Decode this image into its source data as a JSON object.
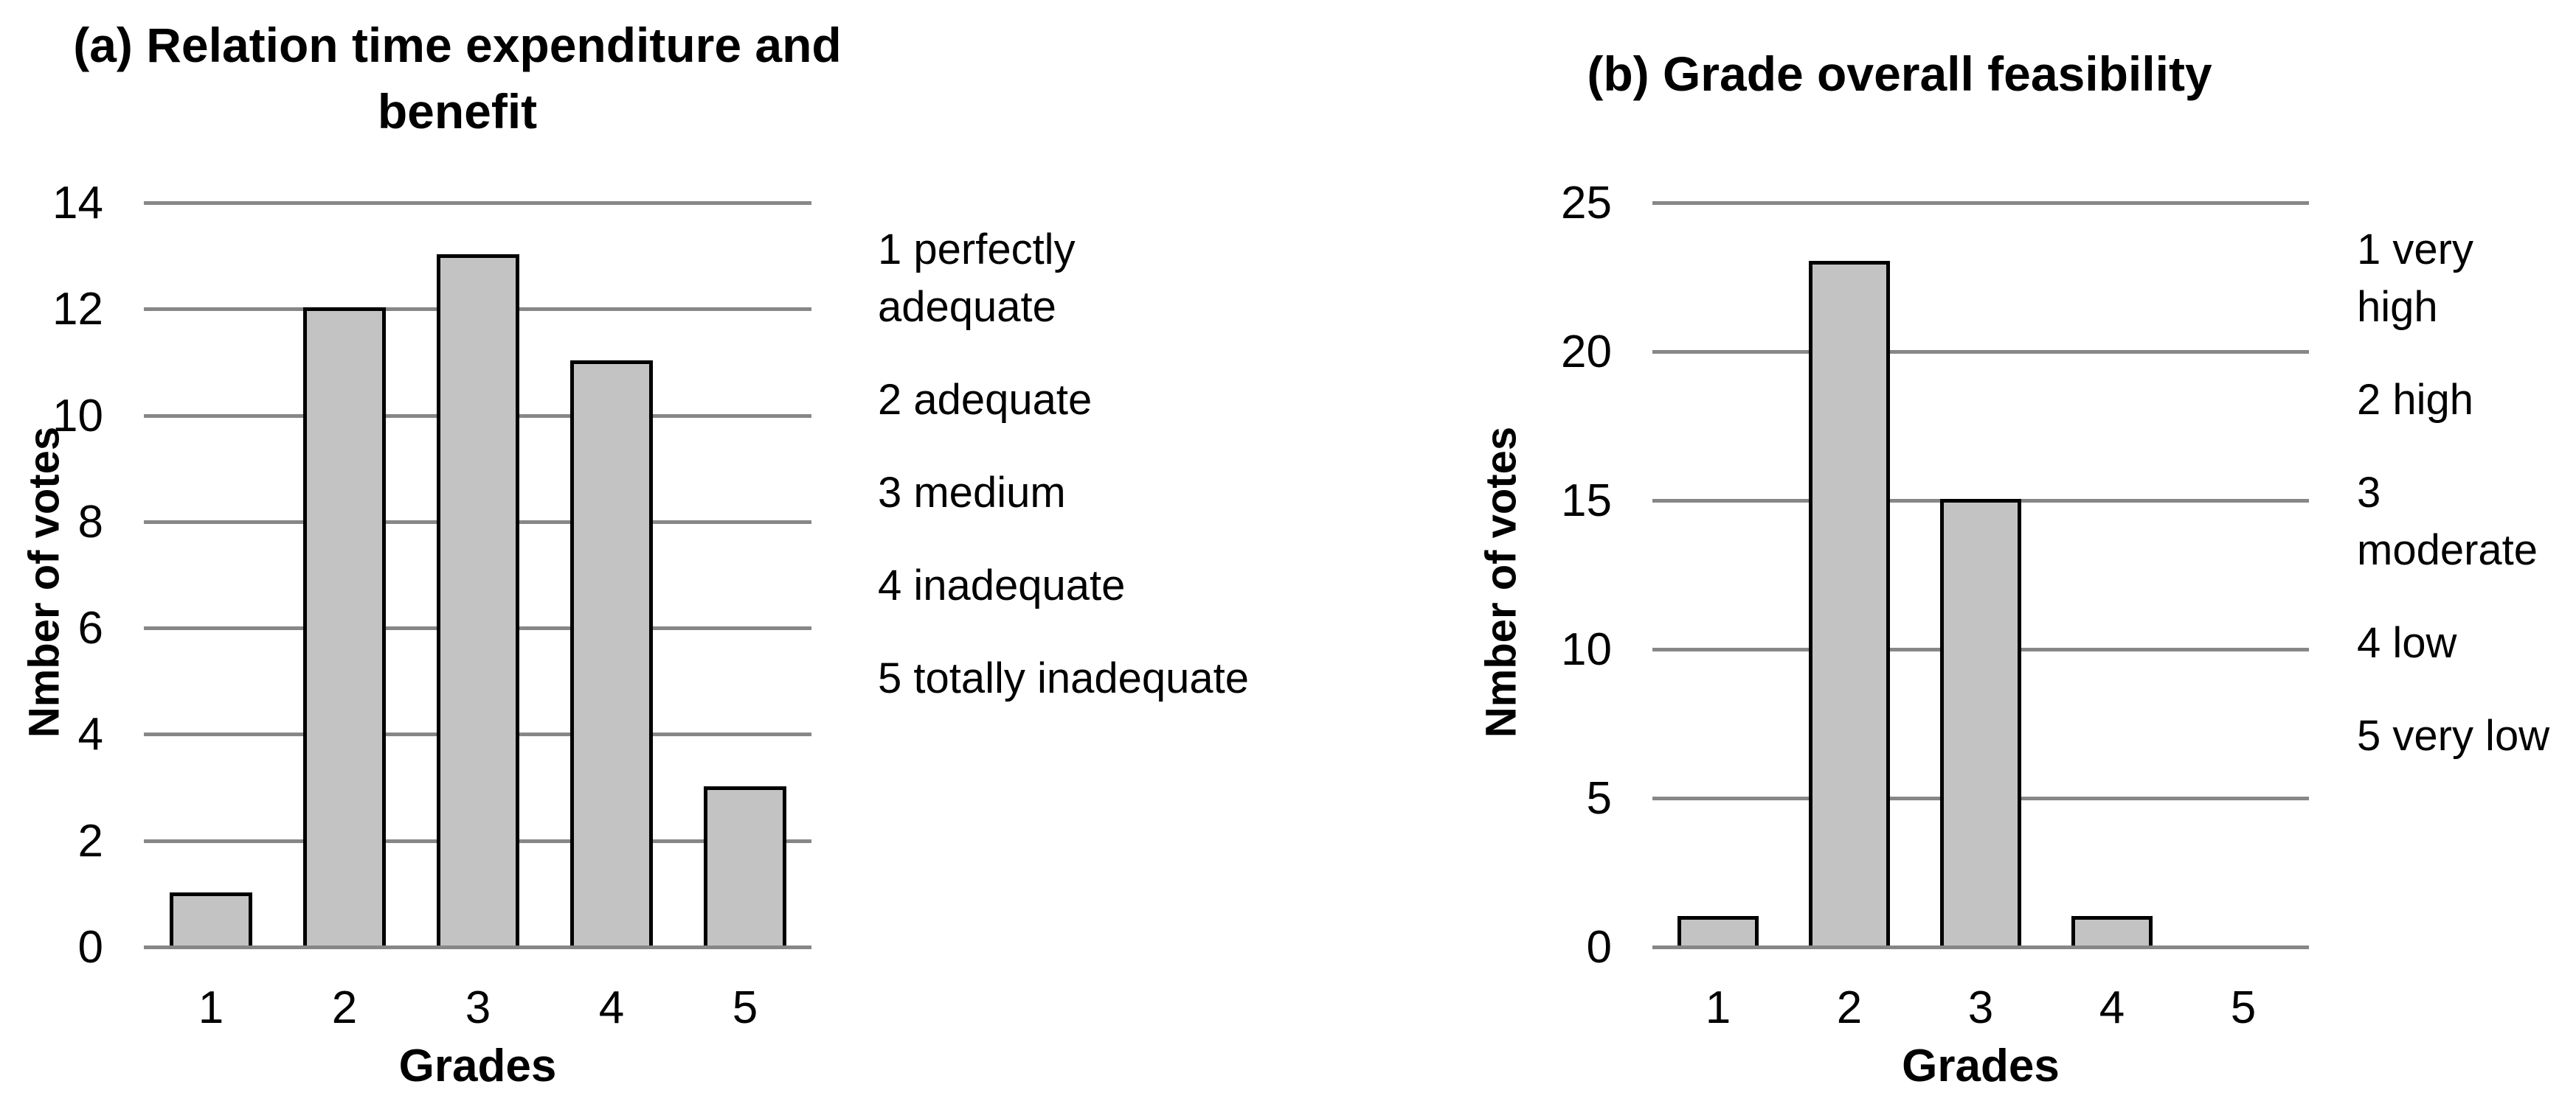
{
  "colors": {
    "background": "#ffffff",
    "text": "#000000",
    "bar_fill": "#c3c3c3",
    "bar_border": "#000000",
    "gridline": "#878787"
  },
  "chart_data": [
    {
      "type": "bar",
      "panel": "a",
      "title": "(a) Relation time expenditure and benefit",
      "title_lines": [
        "(a) Relation time expenditure and",
        "benefit"
      ],
      "categories": [
        "1",
        "2",
        "3",
        "4",
        "5"
      ],
      "values": [
        1,
        12,
        13,
        11,
        3
      ],
      "xlabel": "Grades",
      "ylabel": "Nmber of votes",
      "y_ticks": [
        0,
        2,
        4,
        6,
        8,
        10,
        12,
        14
      ],
      "ylim": [
        0,
        14
      ],
      "grid": "horizontal",
      "legend_position": "right",
      "legend_items": [
        [
          "1 perfectly",
          "adequate"
        ],
        [
          "2 adequate"
        ],
        [
          "3 medium"
        ],
        [
          "4 inadequate"
        ],
        [
          "5 totally inadequate"
        ]
      ]
    },
    {
      "type": "bar",
      "panel": "b",
      "title": "(b) Grade overall feasibility",
      "title_lines": [
        "(b) Grade overall feasibility"
      ],
      "categories": [
        "1",
        "2",
        "3",
        "4",
        "5"
      ],
      "values": [
        1,
        23,
        15,
        1,
        0
      ],
      "xlabel": "Grades",
      "ylabel": "Nmber of votes",
      "y_ticks": [
        0,
        5,
        10,
        15,
        20,
        25
      ],
      "ylim": [
        0,
        25
      ],
      "grid": "horizontal",
      "legend_position": "right",
      "legend_items": [
        [
          "1 very",
          "high"
        ],
        [
          "2 high"
        ],
        [
          "3",
          "moderate"
        ],
        [
          "4 low"
        ],
        [
          "5 very low"
        ]
      ]
    }
  ]
}
